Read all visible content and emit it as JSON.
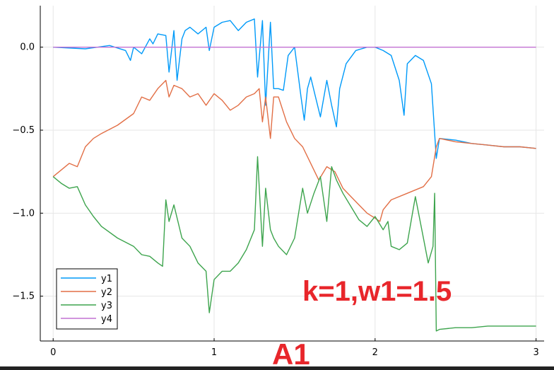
{
  "chart_data": {
    "type": "line",
    "title": "",
    "xlabel": "",
    "ylabel": "",
    "xlim": [
      -0.08,
      3.05
    ],
    "ylim": [
      -1.77,
      0.25
    ],
    "xticks": [
      0,
      1,
      2,
      3
    ],
    "xtick_labels": [
      "0",
      "1",
      "2",
      "3"
    ],
    "yticks": [
      0.0,
      -0.5,
      -1.0,
      -1.5
    ],
    "ytick_labels": [
      "0.0",
      "−0.5",
      "−1.0",
      "−1.5"
    ],
    "grid": true,
    "legend_position": "bottom-left",
    "series": [
      {
        "name": "y1",
        "color": "#009af9",
        "x": [
          0,
          0.2,
          0.35,
          0.45,
          0.48,
          0.5,
          0.55,
          0.6,
          0.62,
          0.65,
          0.7,
          0.72,
          0.75,
          0.77,
          0.8,
          0.82,
          0.85,
          0.9,
          0.95,
          0.97,
          1.0,
          1.05,
          1.1,
          1.15,
          1.2,
          1.25,
          1.27,
          1.3,
          1.32,
          1.35,
          1.37,
          1.4,
          1.43,
          1.46,
          1.5,
          1.54,
          1.56,
          1.58,
          1.6,
          1.63,
          1.66,
          1.7,
          1.73,
          1.76,
          1.78,
          1.82,
          1.88,
          1.95,
          2.0,
          2.05,
          2.1,
          2.15,
          2.18,
          2.2,
          2.25,
          2.3,
          2.35,
          2.38,
          2.4,
          2.5,
          2.6,
          2.7,
          2.8,
          2.9,
          3.0
        ],
        "y": [
          0.0,
          -0.01,
          0.01,
          -0.02,
          -0.08,
          0.0,
          -0.04,
          0.05,
          0.02,
          0.08,
          0.07,
          -0.15,
          0.1,
          -0.2,
          0.05,
          0.1,
          0.12,
          0.08,
          0.12,
          -0.02,
          0.12,
          0.15,
          0.16,
          0.1,
          0.15,
          0.17,
          -0.18,
          0.16,
          -0.35,
          0.15,
          -0.25,
          -0.25,
          -0.26,
          -0.05,
          0.0,
          -0.3,
          -0.44,
          -0.25,
          -0.18,
          -0.3,
          -0.42,
          -0.2,
          -0.35,
          -0.48,
          -0.25,
          -0.1,
          -0.02,
          0.0,
          0.0,
          -0.02,
          -0.05,
          -0.2,
          -0.41,
          -0.1,
          -0.05,
          -0.08,
          -0.22,
          -0.67,
          -0.55,
          -0.56,
          -0.58,
          -0.59,
          -0.6,
          -0.6,
          -0.61
        ]
      },
      {
        "name": "y2",
        "color": "#e26f46",
        "x": [
          0,
          0.05,
          0.1,
          0.15,
          0.2,
          0.25,
          0.3,
          0.4,
          0.5,
          0.55,
          0.6,
          0.65,
          0.7,
          0.72,
          0.75,
          0.8,
          0.85,
          0.9,
          0.95,
          1.0,
          1.05,
          1.1,
          1.15,
          1.2,
          1.25,
          1.28,
          1.3,
          1.32,
          1.35,
          1.37,
          1.4,
          1.45,
          1.5,
          1.55,
          1.6,
          1.65,
          1.7,
          1.75,
          1.8,
          1.85,
          1.9,
          1.95,
          2.0,
          2.03,
          2.05,
          2.1,
          2.2,
          2.3,
          2.35,
          2.38,
          2.4,
          2.5,
          2.6,
          2.7,
          2.8,
          2.9,
          3.0
        ],
        "y": [
          -0.78,
          -0.74,
          -0.7,
          -0.72,
          -0.6,
          -0.55,
          -0.52,
          -0.47,
          -0.4,
          -0.3,
          -0.32,
          -0.25,
          -0.2,
          -0.3,
          -0.23,
          -0.25,
          -0.3,
          -0.28,
          -0.35,
          -0.28,
          -0.32,
          -0.38,
          -0.35,
          -0.3,
          -0.28,
          -0.25,
          -0.45,
          -0.3,
          -0.55,
          -0.3,
          -0.3,
          -0.45,
          -0.55,
          -0.6,
          -0.7,
          -0.8,
          -0.72,
          -0.75,
          -0.85,
          -0.9,
          -0.95,
          -1.0,
          -1.03,
          -1.05,
          -0.98,
          -0.92,
          -0.88,
          -0.84,
          -0.78,
          -0.6,
          -0.55,
          -0.57,
          -0.58,
          -0.59,
          -0.6,
          -0.6,
          -0.61
        ]
      },
      {
        "name": "y3",
        "color": "#3da44d",
        "x": [
          0,
          0.05,
          0.1,
          0.15,
          0.2,
          0.25,
          0.3,
          0.4,
          0.5,
          0.55,
          0.6,
          0.65,
          0.68,
          0.7,
          0.72,
          0.75,
          0.8,
          0.85,
          0.9,
          0.95,
          0.97,
          1.0,
          1.05,
          1.1,
          1.15,
          1.2,
          1.25,
          1.27,
          1.3,
          1.32,
          1.35,
          1.37,
          1.4,
          1.45,
          1.5,
          1.55,
          1.58,
          1.62,
          1.66,
          1.7,
          1.73,
          1.76,
          1.8,
          1.85,
          1.9,
          1.95,
          2.0,
          2.05,
          2.08,
          2.1,
          2.15,
          2.2,
          2.25,
          2.3,
          2.33,
          2.36,
          2.37,
          2.38,
          2.4,
          2.5,
          2.6,
          2.7,
          2.8,
          2.9,
          3.0
        ],
        "y": [
          -0.78,
          -0.82,
          -0.85,
          -0.84,
          -0.95,
          -1.02,
          -1.08,
          -1.15,
          -1.2,
          -1.25,
          -1.26,
          -1.3,
          -1.32,
          -0.92,
          -1.05,
          -0.95,
          -1.15,
          -1.2,
          -1.3,
          -1.35,
          -1.6,
          -1.4,
          -1.35,
          -1.35,
          -1.3,
          -1.22,
          -1.1,
          -0.66,
          -1.2,
          -0.85,
          -1.1,
          -1.15,
          -1.2,
          -1.25,
          -1.15,
          -0.85,
          -1.0,
          -0.88,
          -0.78,
          -1.05,
          -0.72,
          -0.8,
          -0.88,
          -0.96,
          -1.04,
          -1.08,
          -1.02,
          -1.1,
          -1.05,
          -1.2,
          -1.22,
          -1.18,
          -0.9,
          -1.15,
          -1.3,
          -1.2,
          -0.88,
          -1.71,
          -1.7,
          -1.69,
          -1.69,
          -1.68,
          -1.68,
          -1.68,
          -1.68
        ]
      },
      {
        "name": "y4",
        "color": "#c271d2",
        "x": [
          0,
          3.0
        ],
        "y": [
          0.0,
          0.0
        ]
      }
    ],
    "annotations": [
      "k=1,w1=1.5",
      "A1"
    ]
  }
}
